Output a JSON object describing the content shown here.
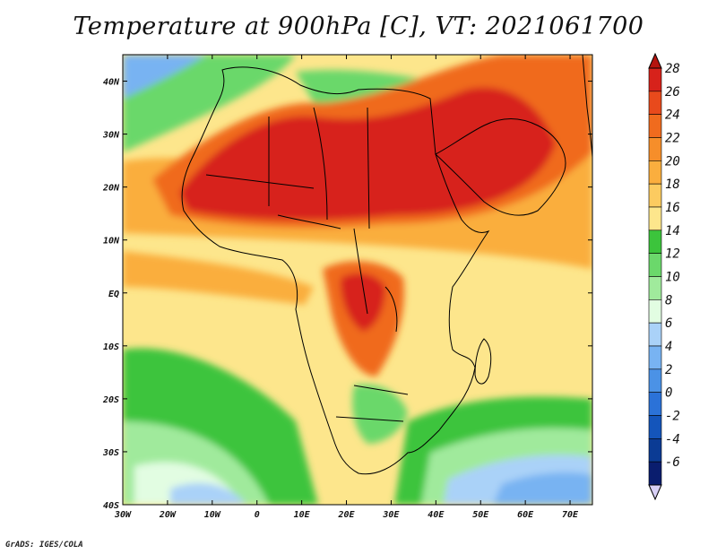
{
  "title": "Temperature at 900hPa [C], VT: 2021061700",
  "footer": "GrADS: IGES/COLA",
  "map": {
    "lon_range": [
      -30,
      75
    ],
    "lat_range": [
      -40,
      45
    ],
    "lon_ticks": [
      {
        "value": -30,
        "label": "30W"
      },
      {
        "value": -20,
        "label": "20W"
      },
      {
        "value": -10,
        "label": "10W"
      },
      {
        "value": 0,
        "label": "0"
      },
      {
        "value": 10,
        "label": "10E"
      },
      {
        "value": 20,
        "label": "20E"
      },
      {
        "value": 30,
        "label": "30E"
      },
      {
        "value": 40,
        "label": "40E"
      },
      {
        "value": 50,
        "label": "50E"
      },
      {
        "value": 60,
        "label": "60E"
      },
      {
        "value": 70,
        "label": "70E"
      }
    ],
    "lat_ticks": [
      {
        "value": 40,
        "label": "40N"
      },
      {
        "value": 30,
        "label": "30N"
      },
      {
        "value": 20,
        "label": "20N"
      },
      {
        "value": 10,
        "label": "10N"
      },
      {
        "value": 0,
        "label": "EQ"
      },
      {
        "value": -10,
        "label": "10S"
      },
      {
        "value": -20,
        "label": "20S"
      },
      {
        "value": -30,
        "label": "30S"
      },
      {
        "value": -40,
        "label": "40S"
      }
    ]
  },
  "colorbar": {
    "labels": [
      "28",
      "26",
      "24",
      "22",
      "20",
      "18",
      "16",
      "14",
      "12",
      "10",
      "8",
      "6",
      "4",
      "2",
      "0",
      "-2",
      "-4",
      "-6"
    ],
    "colors": [
      "#d7221b",
      "#e84a1c",
      "#f06b1e",
      "#f68e2a",
      "#faae3e",
      "#fccb60",
      "#fde68c",
      "#3cc43c",
      "#6bd86b",
      "#a0ea9c",
      "#e2fde2",
      "#aad2f8",
      "#78b3f2",
      "#4b92e6",
      "#2b72d8",
      "#1455bb",
      "#0b3b94",
      "#0a1d6e"
    ]
  }
}
